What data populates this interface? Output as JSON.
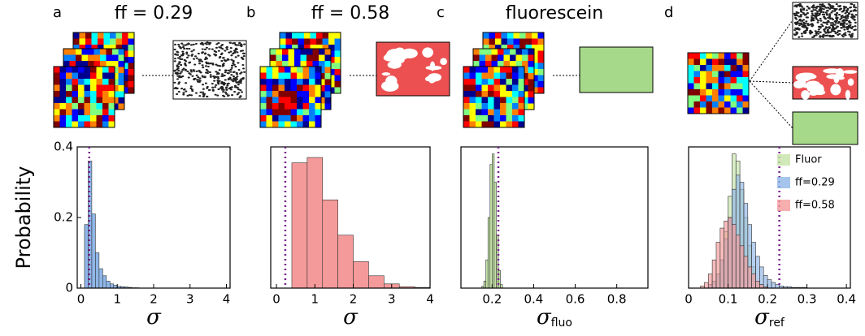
{
  "chart_data": [
    {
      "type": "histogram",
      "panel_label": "a",
      "title": "ff = 0.29",
      "title_color": "#4a90e2",
      "ylabel": "Probability",
      "xlabel": "σ",
      "bins": [
        0.1,
        0.2,
        0.3,
        0.4,
        0.5,
        0.6,
        0.7,
        0.8,
        0.9,
        1.0,
        1.1,
        1.2,
        1.3,
        1.4,
        1.5,
        1.6
      ],
      "values": [
        0.18,
        0.36,
        0.21,
        0.1,
        0.055,
        0.035,
        0.02,
        0.012,
        0.008,
        0.005,
        0.004,
        0.003,
        0.002,
        0.001,
        0.001
      ],
      "color": "#8fb6e8",
      "ref_x": 0.23,
      "xlim": [
        -0.1,
        4.1
      ],
      "ylim": [
        0,
        0.4
      ],
      "xticks": [
        0,
        1,
        2,
        3,
        4
      ],
      "yticks": [
        0,
        0.2,
        0.4
      ]
    },
    {
      "type": "histogram",
      "panel_label": "b",
      "title": "ff = 0.58",
      "title_color": "#e8504a",
      "xlabel": "σ",
      "bins": [
        0.4,
        0.8,
        1.2,
        1.6,
        2.0,
        2.4,
        2.8,
        3.2,
        3.6,
        4.0
      ],
      "values": [
        0.355,
        0.37,
        0.25,
        0.15,
        0.075,
        0.035,
        0.012,
        0.004,
        0.002
      ],
      "color": "#f59a9a",
      "ref_x": 0.23,
      "xlim": [
        -0.15,
        4.0
      ],
      "ylim": [
        0,
        0.4
      ],
      "xticks": [
        0,
        1,
        2,
        3,
        4
      ]
    },
    {
      "type": "histogram",
      "panel_label": "c",
      "title": "fluorescein",
      "title_color": "#7cc44a",
      "xlabel": "σ",
      "xlabel_sub": "fluo",
      "bins": [
        0.15,
        0.16,
        0.17,
        0.18,
        0.19,
        0.2,
        0.21,
        0.22,
        0.23,
        0.24,
        0.25
      ],
      "values": [
        0.005,
        0.02,
        0.08,
        0.2,
        0.35,
        0.38,
        0.3,
        0.15,
        0.05,
        0.01
      ],
      "color": "#c5e3a8",
      "ref_x": 0.23,
      "xlim": [
        0.05,
        0.95
      ],
      "ylim": [
        0,
        0.4
      ],
      "xticks": [
        0.2,
        0.4,
        0.6,
        0.8
      ]
    },
    {
      "type": "histogram",
      "panel_label": "d",
      "xlabel": "σ",
      "xlabel_sub": "ref",
      "ref_x": 0.23,
      "xlim": [
        0,
        0.41
      ],
      "ylim": [
        0,
        0.2
      ],
      "xticks": [
        0,
        0.1,
        0.2,
        0.3,
        0.4
      ],
      "legend": "upper right",
      "series": [
        {
          "name": "Fluor",
          "color": "#c5e3a8",
          "bins": [
            0.05,
            0.06,
            0.07,
            0.08,
            0.09,
            0.1,
            0.11,
            0.12,
            0.13,
            0.14,
            0.15,
            0.16,
            0.17,
            0.18,
            0.19
          ],
          "values": [
            0.005,
            0.01,
            0.02,
            0.04,
            0.08,
            0.13,
            0.19,
            0.18,
            0.14,
            0.1,
            0.06,
            0.03,
            0.01,
            0.005
          ]
        },
        {
          "name": "ff=0.29",
          "color": "#8fb6e8",
          "bins": [
            0.05,
            0.06,
            0.07,
            0.08,
            0.09,
            0.1,
            0.11,
            0.12,
            0.13,
            0.14,
            0.15,
            0.16,
            0.17,
            0.18,
            0.19,
            0.2,
            0.21,
            0.22,
            0.23,
            0.24,
            0.25,
            0.26,
            0.27,
            0.28,
            0.29,
            0.3
          ],
          "values": [
            0.005,
            0.01,
            0.02,
            0.04,
            0.07,
            0.1,
            0.14,
            0.16,
            0.15,
            0.12,
            0.09,
            0.065,
            0.045,
            0.03,
            0.018,
            0.012,
            0.008,
            0.005,
            0.003,
            0.002,
            0.002,
            0.001,
            0.001,
            0.001,
            0.001
          ]
        },
        {
          "name": "ff=0.58",
          "color": "#f59a9a",
          "bins": [
            0.03,
            0.04,
            0.05,
            0.06,
            0.07,
            0.08,
            0.09,
            0.1,
            0.11,
            0.12,
            0.13,
            0.14,
            0.15,
            0.16,
            0.17,
            0.18,
            0.19,
            0.2
          ],
          "values": [
            0.003,
            0.008,
            0.02,
            0.04,
            0.065,
            0.085,
            0.095,
            0.1,
            0.09,
            0.075,
            0.06,
            0.045,
            0.03,
            0.02,
            0.01,
            0.005,
            0.002
          ]
        }
      ]
    }
  ]
}
